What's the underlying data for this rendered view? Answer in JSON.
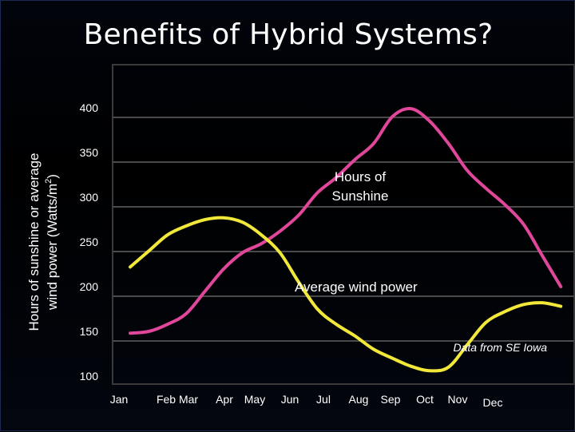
{
  "slide": {
    "title": "Benefits of Hybrid Systems?"
  },
  "chart_data": {
    "type": "line",
    "ylabel_line1": "Hours of sunshine or average",
    "ylabel_line2_prefix": "wind power (Watts/m",
    "ylabel_line2_sup": "2",
    "ylabel_line2_suffix": ")",
    "ylim": [
      100,
      400
    ],
    "y_ticks": [
      400,
      350,
      300,
      250,
      200,
      150,
      100
    ],
    "grid": true,
    "month_labels": [
      "Jan",
      "Feb",
      "Mar",
      "Apr",
      "May",
      "Jun",
      "Jul",
      "Aug",
      "Sep",
      "Oct",
      "Nov",
      "Dec"
    ],
    "series": [
      {
        "name": "Hours of Sunshine",
        "label_line1": "Hours of",
        "label_line2": "Sunshine",
        "color": "#e0479a",
        "x": [
          0.4,
          0.9,
          1.4,
          1.9,
          2.4,
          2.9,
          3.4,
          3.9,
          4.4,
          4.9,
          5.4,
          5.9,
          6.4,
          6.9,
          7.4,
          7.9,
          8.4,
          8.9,
          9.4,
          9.9,
          10.4,
          10.9,
          11.4,
          11.9
        ],
        "y": [
          148,
          150,
          158,
          170,
          195,
          220,
          238,
          248,
          262,
          280,
          305,
          322,
          342,
          360,
          390,
          399,
          385,
          360,
          330,
          310,
          292,
          270,
          235,
          200
        ]
      },
      {
        "name": "Average wind power",
        "label": "Average wind power",
        "color": "#f2e83a",
        "x": [
          0.4,
          0.9,
          1.4,
          1.9,
          2.4,
          2.9,
          3.4,
          3.9,
          4.4,
          4.9,
          5.4,
          5.9,
          6.4,
          6.9,
          7.4,
          7.9,
          8.4,
          8.9,
          9.4,
          9.9,
          10.4,
          10.9,
          11.4,
          11.9
        ],
        "y": [
          222,
          240,
          258,
          268,
          275,
          277,
          272,
          258,
          238,
          205,
          175,
          158,
          145,
          130,
          120,
          111,
          106,
          110,
          135,
          160,
          172,
          180,
          182,
          178
        ]
      }
    ],
    "note": "Data from SE Iowa"
  }
}
